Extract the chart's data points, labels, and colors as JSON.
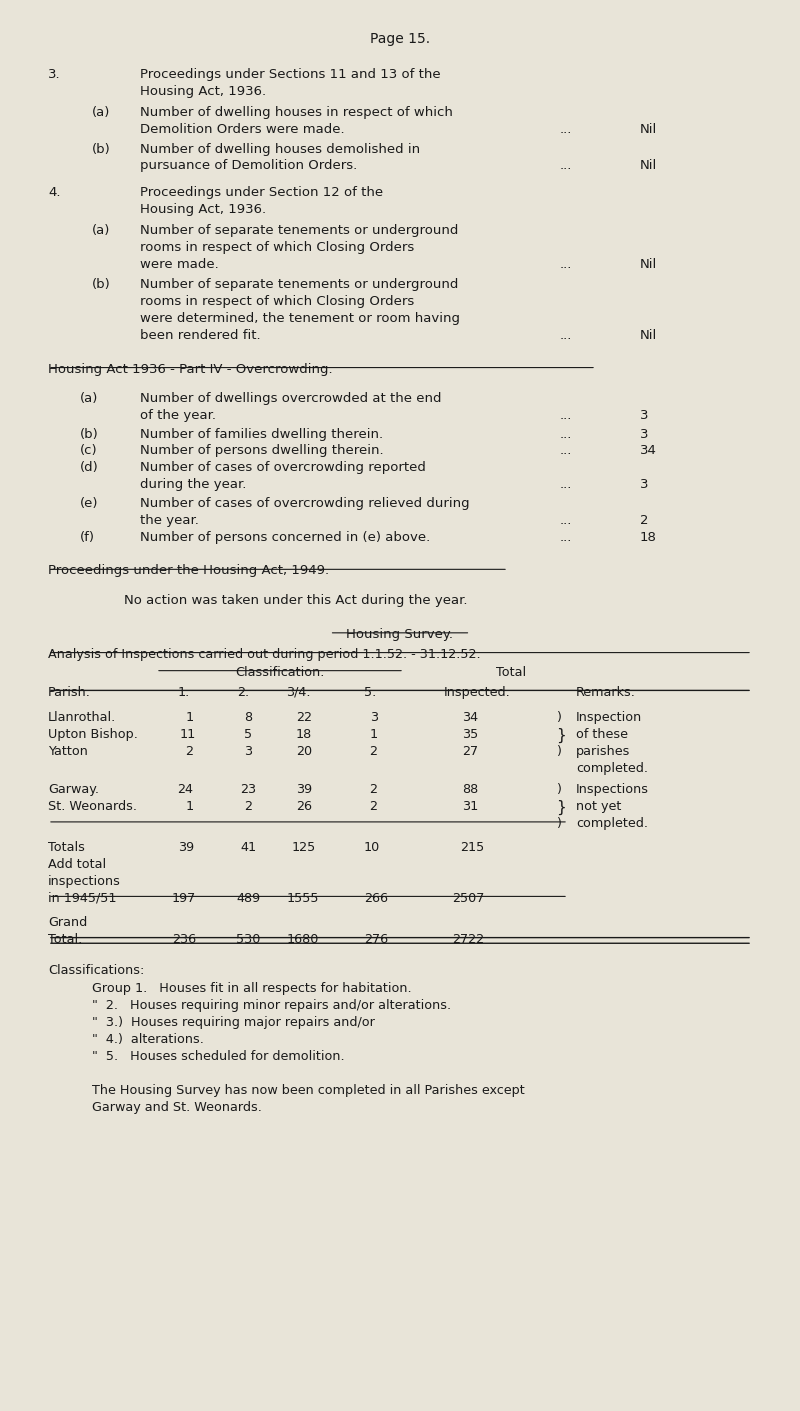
{
  "bg_color": "#e8e4d8",
  "text_color": "#1a1a1a",
  "font_family": "Courier New",
  "page_title": "Page 15.",
  "sections": {
    "s3_line1": "3.",
    "s3_text1": "Proceedings under Sections 11 and 13 of the",
    "s3_text2": "Housing Act, 1936.",
    "s3a_label": "(a)",
    "s3a_text1": "Number of dwelling houses in respect of which",
    "s3a_text2": "Demolition Orders were made.",
    "s3a_val": "Nil",
    "s3b_label": "(b)",
    "s3b_text1": "Number of dwelling houses demolished in",
    "s3b_text2": "pursuance of Demolition Orders.",
    "s3b_val": "Nil",
    "s4_line1": "4.",
    "s4_text1": "Proceedings under Section 12 of the",
    "s4_text2": "Housing Act, 1936.",
    "s4a_label": "(a)",
    "s4a_text1": "Number of separate tenements or underground",
    "s4a_text2": "rooms in respect of which Closing Orders",
    "s4a_text3": "were made.",
    "s4a_val": "Nil",
    "s4b_label": "(b)",
    "s4b_text1": "Number of separate tenements or underground",
    "s4b_text2": "rooms in respect of which Closing Orders",
    "s4b_text3": "were determined, the tenement or room having",
    "s4b_text4": "been rendered fit.",
    "s4b_val": "Nil"
  },
  "overcrowding_title": "Housing Act 1936 - Part IV - Overcrowding.",
  "overcrowding": {
    "a_label": "(a)",
    "a_text1": "Number of dwellings overcrowded at the end",
    "a_text2": "of the year.",
    "a_val": "3",
    "b_label": "(b)",
    "b_text": "Number of families dwelling therein.",
    "b_val": "3",
    "c_label": "(c)",
    "c_text": "Number of persons dwelling therein.",
    "c_val": "34",
    "d_label": "(d)",
    "d_text1": "Number of cases of overcrowding reported",
    "d_text2": "during the year.",
    "d_val": "3",
    "e_label": "(e)",
    "e_text1": "Number of cases of overcrowding relieved during",
    "e_text2": "the year.",
    "e_val": "2",
    "f_label": "(f)",
    "f_text": "Number of persons concerned in (e) above.",
    "f_val": "18"
  },
  "act1949_title": "Proceedings under the Housing Act, 1949.",
  "act1949_text": "No action was taken under this Act during the year.",
  "survey_title": "Housing Survey.",
  "survey_analysis": "Analysis of Inspections carried out during period 1.1.52. - 31.12.52.",
  "table": {
    "class_header": "Classification.",
    "total_header": "Total",
    "col_headers": [
      "Parish.",
      "1.",
      "2.",
      "3/4.",
      "5.",
      "Inspected.",
      "Remarks."
    ],
    "rows": [
      {
        "parish": "Llanrothal.",
        "c1": "1",
        "c2": "8",
        "c3": "22",
        "c4": "3",
        "total": "34",
        "bracket": ")",
        "remark": "Inspection"
      },
      {
        "parish": "Upton Bishop.",
        "c1": "11",
        "c2": "5",
        "c3": "18",
        "c4": "1",
        "total": "35",
        "bracket": "}",
        "remark": "of these"
      },
      {
        "parish": "Yatton",
        "c1": "2",
        "c2": "3",
        "c3": "20",
        "c4": "2",
        "total": "27",
        "bracket": ")",
        "remark": "parishes"
      },
      {
        "parish": "",
        "c1": "",
        "c2": "",
        "c3": "",
        "c4": "",
        "total": "",
        "bracket": "",
        "remark": "completed."
      },
      {
        "parish": "Garway.",
        "c1": "24",
        "c2": "23",
        "c3": "39",
        "c4": "2",
        "total": "88",
        "bracket": ")",
        "remark": "Inspections"
      },
      {
        "parish": "St. Weonards.",
        "c1": "1",
        "c2": "2",
        "c3": "26",
        "c4": "2",
        "total": "31",
        "bracket": "}",
        "remark": "not yet"
      },
      {
        "parish": "",
        "c1": "",
        "c2": "",
        "c3": "",
        "c4": "",
        "total": "",
        "bracket": ")",
        "remark": "completed."
      }
    ],
    "totals_label": "Totals",
    "totals": {
      "c1": "39",
      "c2": "41",
      "c3": "125",
      "c4": "10",
      "total": "215"
    },
    "add_label1": "Add total",
    "add_label2": "inspections",
    "add_label3": "in 1945/51",
    "add_vals": {
      "c1": "197",
      "c2": "489",
      "c3": "1555",
      "c4": "266",
      "total": "2507"
    },
    "grand_label1": "Grand",
    "grand_label2": "Total.",
    "grand_vals": {
      "c1": "236",
      "c2": "530",
      "c3": "1680",
      "c4": "276",
      "total": "2722"
    }
  },
  "classifications": [
    "Classifications:",
    "Group 1.   Houses fit in all respects for habitation.",
    "\"  2.   Houses requiring minor repairs and/or alterations.",
    "\"  3.)  Houses requiring major repairs and/or",
    "\"  4.)  alterations.",
    "\"  5.   Houses scheduled for demolition."
  ],
  "final_text1": "The Housing Survey has now been completed in all Parishes except",
  "final_text2": "Garway and St. Weonards."
}
